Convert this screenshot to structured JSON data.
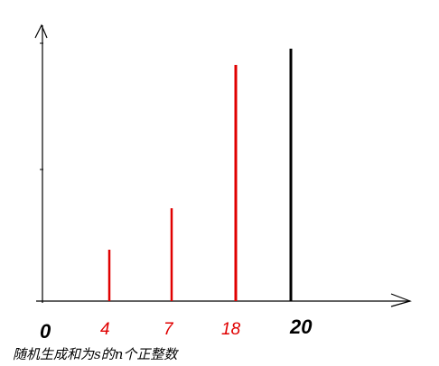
{
  "diagram": {
    "axis_ticks": [
      "0",
      "4",
      "7",
      "18",
      "20"
    ],
    "caption": "随机生成和为s的n个正整数",
    "colors": {
      "axis": "#000000",
      "red_bar": "#e00000",
      "black_bar": "#000000"
    },
    "bars": [
      {
        "label": "4",
        "color": "red"
      },
      {
        "label": "7",
        "color": "red"
      },
      {
        "label": "18",
        "color": "red"
      },
      {
        "label": "20",
        "color": "black"
      }
    ]
  }
}
